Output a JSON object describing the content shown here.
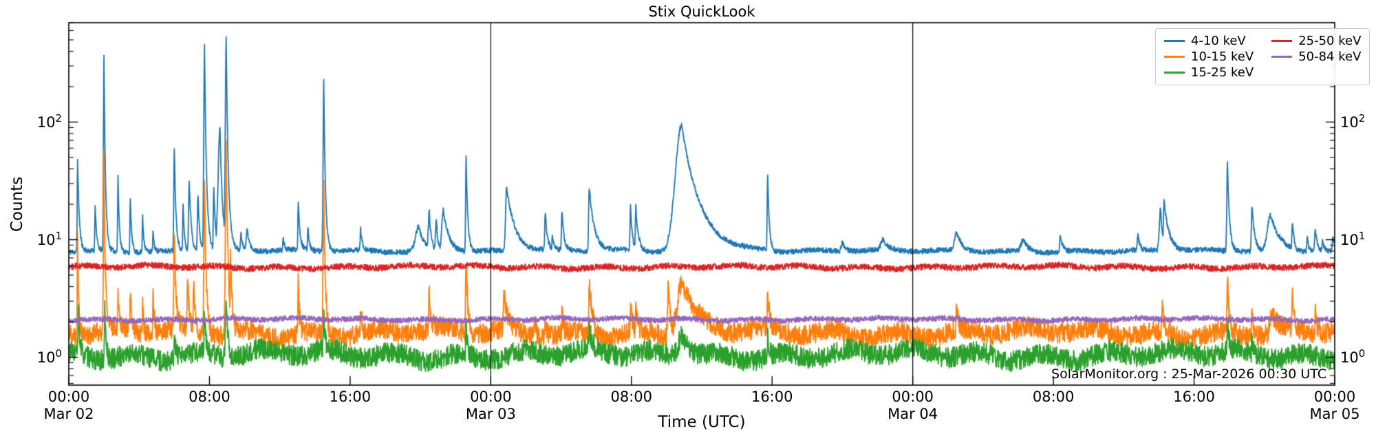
{
  "chart_data": {
    "type": "line",
    "title": "Stix QuickLook",
    "xlabel": "Time (UTC)",
    "ylabel": "Counts",
    "annotation": "SolarMonitor.org : 25-Mar-2026 00:30 UTC",
    "yscale": "log",
    "ylim": [
      0.58,
      700
    ],
    "x_hours_range": [
      0,
      72
    ],
    "x_ticks": [
      {
        "t": 0,
        "label": "00:00",
        "date": "Mar 02"
      },
      {
        "t": 8,
        "label": "08:00",
        "date": ""
      },
      {
        "t": 16,
        "label": "16:00",
        "date": ""
      },
      {
        "t": 24,
        "label": "00:00",
        "date": "Mar 03"
      },
      {
        "t": 32,
        "label": "08:00",
        "date": ""
      },
      {
        "t": 40,
        "label": "16:00",
        "date": ""
      },
      {
        "t": 48,
        "label": "00:00",
        "date": "Mar 04"
      },
      {
        "t": 56,
        "label": "08:00",
        "date": ""
      },
      {
        "t": 64,
        "label": "16:00",
        "date": ""
      },
      {
        "t": 72,
        "label": "00:00",
        "date": "Mar 05"
      }
    ],
    "y_ticks": [
      {
        "value": 1,
        "exp": 0
      },
      {
        "value": 10,
        "exp": 1
      },
      {
        "value": 100,
        "exp": 2
      }
    ],
    "day_boundary_lines_hours": [
      24,
      48
    ],
    "legend": {
      "position": "upper right",
      "columns": 2,
      "order": "column-major"
    },
    "series": [
      {
        "name": "4-10 keV",
        "color": "#1f77b4",
        "baseline": 8.0,
        "noise_dex": 0.022,
        "seed": 11,
        "events": [
          [
            0.5,
            50,
            0.03,
            0.1
          ],
          [
            1.5,
            20,
            0.03,
            0.08
          ],
          [
            2.0,
            360,
            0.04,
            0.09
          ],
          [
            2.8,
            34,
            0.03,
            0.08
          ],
          [
            3.5,
            23,
            0.03,
            0.08
          ],
          [
            4.2,
            16,
            0.03,
            0.08
          ],
          [
            4.8,
            12,
            0.03,
            0.06
          ],
          [
            6.0,
            62,
            0.04,
            0.1
          ],
          [
            6.5,
            20,
            0.03,
            0.08
          ],
          [
            6.85,
            33,
            0.05,
            0.12
          ],
          [
            7.35,
            25,
            0.05,
            0.1
          ],
          [
            7.72,
            460,
            0.06,
            0.12
          ],
          [
            8.25,
            28,
            0.04,
            0.1
          ],
          [
            8.6,
            90,
            0.15,
            0.15
          ],
          [
            8.95,
            500,
            0.07,
            0.13
          ],
          [
            9.8,
            11,
            0.05,
            0.1
          ],
          [
            10.15,
            12,
            0.08,
            0.15
          ],
          [
            12.2,
            10,
            0.04,
            0.08
          ],
          [
            13.05,
            21,
            0.03,
            0.1
          ],
          [
            13.6,
            13,
            0.03,
            0.08
          ],
          [
            14.5,
            235,
            0.05,
            0.1
          ],
          [
            16.6,
            12,
            0.04,
            0.1
          ],
          [
            19.9,
            13,
            0.25,
            0.3
          ],
          [
            20.5,
            17,
            0.08,
            0.12
          ],
          [
            20.9,
            15,
            0.06,
            0.1
          ],
          [
            21.3,
            18,
            0.12,
            0.35
          ],
          [
            22.6,
            51,
            0.04,
            0.1
          ],
          [
            24.9,
            28,
            0.08,
            0.5
          ],
          [
            25.9,
            10,
            0.04,
            0.1
          ],
          [
            27.1,
            17,
            0.04,
            0.12
          ],
          [
            27.5,
            11,
            0.03,
            0.08
          ],
          [
            28.05,
            17,
            0.04,
            0.12
          ],
          [
            29.6,
            28,
            0.05,
            0.3
          ],
          [
            31.95,
            19,
            0.04,
            0.1
          ],
          [
            32.25,
            19,
            0.04,
            0.15
          ],
          [
            34.85,
            93,
            0.5,
            1.1
          ],
          [
            39.75,
            37,
            0.04,
            0.1
          ],
          [
            44.0,
            9.5,
            0.1,
            0.2
          ],
          [
            46.3,
            9.8,
            0.15,
            0.3
          ],
          [
            50.5,
            11.5,
            0.15,
            0.3
          ],
          [
            54.3,
            10,
            0.2,
            0.3
          ],
          [
            56.4,
            11,
            0.05,
            0.12
          ],
          [
            60.8,
            11,
            0.05,
            0.1
          ],
          [
            62.1,
            18,
            0.1,
            0.12
          ],
          [
            62.3,
            21,
            0.06,
            0.3
          ],
          [
            65.9,
            45,
            0.05,
            0.12
          ],
          [
            67.3,
            19.5,
            0.05,
            0.15
          ],
          [
            68.35,
            16,
            0.25,
            0.55
          ],
          [
            69.6,
            14,
            0.05,
            0.12
          ],
          [
            70.45,
            10.5,
            0.05,
            0.1
          ],
          [
            70.9,
            12.5,
            0.06,
            0.12
          ],
          [
            71.3,
            9.8,
            0.04,
            0.1
          ],
          [
            71.9,
            11,
            0.05,
            0.1
          ]
        ]
      },
      {
        "name": "10-15 keV",
        "color": "#ff7f0e",
        "baseline": 1.62,
        "noise_dex": 0.085,
        "seed": 22,
        "events": [
          [
            0.5,
            11,
            0.03,
            0.08
          ],
          [
            2.0,
            45,
            0.04,
            0.08
          ],
          [
            2.8,
            3.3,
            0.03,
            0.08
          ],
          [
            3.5,
            3.3,
            0.03,
            0.06
          ],
          [
            4.2,
            3.0,
            0.03,
            0.06
          ],
          [
            4.8,
            3.9,
            0.03,
            0.06
          ],
          [
            6.0,
            11,
            0.04,
            0.1
          ],
          [
            6.75,
            4.6,
            0.04,
            0.1
          ],
          [
            7.1,
            4.2,
            0.03,
            0.08
          ],
          [
            7.72,
            35,
            0.05,
            0.1
          ],
          [
            8.95,
            63,
            0.06,
            0.12
          ],
          [
            9.2,
            8,
            0.04,
            0.1
          ],
          [
            13.05,
            4.6,
            0.03,
            0.08
          ],
          [
            14.5,
            28,
            0.05,
            0.1
          ],
          [
            16.6,
            2.9,
            0.03,
            0.08
          ],
          [
            20.5,
            3.2,
            0.05,
            0.1
          ],
          [
            22.6,
            7.5,
            0.04,
            0.1
          ],
          [
            24.75,
            3.4,
            0.05,
            0.2
          ],
          [
            26.5,
            2.5,
            0.03,
            0.08
          ],
          [
            27.1,
            2.6,
            0.03,
            0.08
          ],
          [
            28.05,
            2.5,
            0.03,
            0.08
          ],
          [
            29.6,
            4.7,
            0.04,
            0.2
          ],
          [
            31.95,
            3.2,
            0.03,
            0.08
          ],
          [
            32.25,
            2.9,
            0.03,
            0.08
          ],
          [
            34.1,
            4.3,
            0.06,
            0.12
          ],
          [
            34.9,
            4.5,
            0.4,
            0.7
          ],
          [
            39.75,
            3.3,
            0.03,
            0.1
          ],
          [
            50.5,
            2.4,
            0.05,
            0.1
          ],
          [
            56.4,
            2.3,
            0.03,
            0.08
          ],
          [
            62.2,
            2.6,
            0.05,
            0.15
          ],
          [
            65.9,
            4.5,
            0.04,
            0.1
          ],
          [
            67.3,
            2.7,
            0.04,
            0.1
          ],
          [
            68.4,
            2.5,
            0.1,
            0.3
          ],
          [
            69.6,
            3.0,
            0.04,
            0.1
          ],
          [
            70.9,
            2.5,
            0.03,
            0.08
          ]
        ]
      },
      {
        "name": "15-25 keV",
        "color": "#2ca02c",
        "baseline": 1.05,
        "noise_dex": 0.088,
        "seed": 33,
        "events": [
          [
            0.55,
            2.3,
            0.03,
            0.08
          ],
          [
            2.05,
            2.8,
            0.03,
            0.08
          ],
          [
            6.0,
            1.9,
            0.03,
            0.08
          ],
          [
            7.72,
            2.3,
            0.04,
            0.08
          ],
          [
            8.95,
            3.4,
            0.05,
            0.1
          ],
          [
            14.5,
            2.1,
            0.04,
            0.08
          ],
          [
            22.6,
            1.9,
            0.03,
            0.08
          ],
          [
            29.6,
            1.6,
            0.04,
            0.15
          ],
          [
            34.9,
            1.7,
            0.3,
            0.5
          ],
          [
            39.75,
            1.7,
            0.03,
            0.08
          ],
          [
            65.9,
            1.9,
            0.04,
            0.1
          ],
          [
            67.3,
            1.5,
            0.03,
            0.08
          ]
        ]
      },
      {
        "name": "25-50 keV",
        "color": "#d62728",
        "baseline": 5.85,
        "noise_dex": 0.026,
        "seed": 44,
        "events": []
      },
      {
        "name": "50-84 keV",
        "color": "#9467bd",
        "baseline": 2.1,
        "noise_dex": 0.022,
        "seed": 55,
        "events": []
      }
    ]
  }
}
